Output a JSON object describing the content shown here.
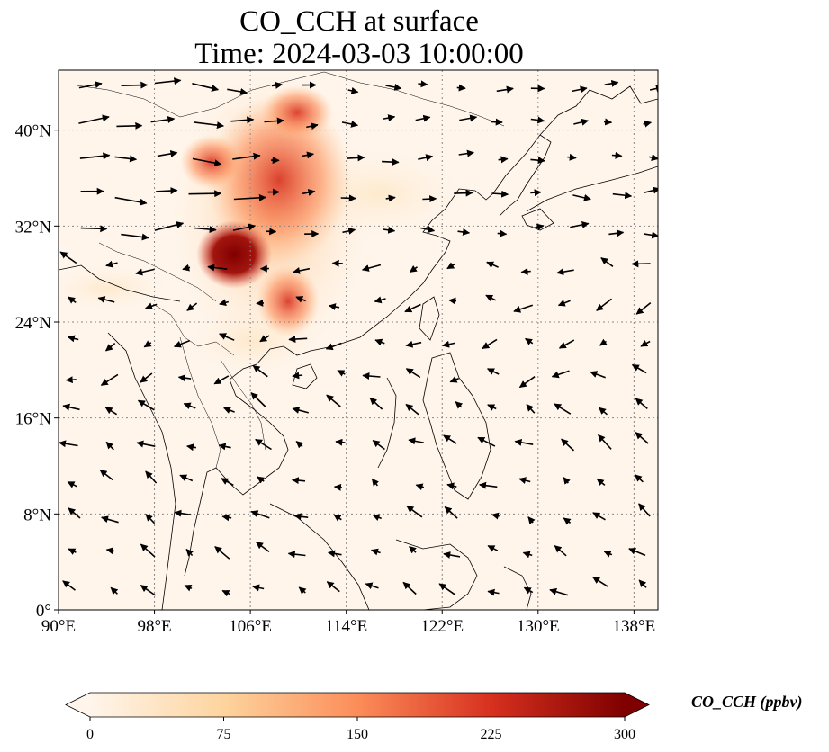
{
  "title": "CO_CCH at surface",
  "subtitle": "Time: 2024-03-03 10:00:00",
  "map": {
    "lon_range": [
      90,
      140
    ],
    "lat_range": [
      0,
      45
    ],
    "lon_ticks": [
      "90°E",
      "98°E",
      "106°E",
      "114°E",
      "122°E",
      "130°E",
      "138°E"
    ],
    "lat_ticks": [
      "0°",
      "8°N",
      "16°N",
      "24°N",
      "32°N",
      "40°N"
    ],
    "background_color": "#fff5eb",
    "gridlines": "dotted",
    "overlay": "wind vectors"
  },
  "colorbar": {
    "label": "CO_CCH (ppbv)",
    "min": 0,
    "max": 300,
    "ticks": [
      "0",
      "75",
      "150",
      "225",
      "300"
    ],
    "colormap": "OrRd",
    "colors": [
      "#fff5eb",
      "#fdd49e",
      "#fc8d59",
      "#d7301f",
      "#7f0000"
    ],
    "extend": "both"
  },
  "chart_data": {
    "type": "heatmap",
    "title": "CO_CCH at surface",
    "subtitle": "Time: 2024-03-03 10:00:00",
    "x_range": [
      90,
      140
    ],
    "y_range": [
      0,
      45
    ],
    "x_ticks": [
      90,
      98,
      106,
      114,
      122,
      130,
      138
    ],
    "y_ticks": [
      0,
      8,
      16,
      24,
      32,
      40
    ],
    "value_range": [
      0,
      300
    ],
    "plumes": [
      {
        "lon": 104.5,
        "lat": 29.5,
        "value": 300
      },
      {
        "lon": 106.5,
        "lat": 33.5,
        "value": 190
      },
      {
        "lon": 109.5,
        "lat": 35.5,
        "value": 170
      },
      {
        "lon": 107.5,
        "lat": 38.5,
        "value": 160
      },
      {
        "lon": 111.0,
        "lat": 41.5,
        "value": 230
      },
      {
        "lon": 102.5,
        "lat": 36.5,
        "value": 190
      },
      {
        "lon": 109.5,
        "lat": 25.5,
        "value": 190
      },
      {
        "lon": 108.0,
        "lat": 28.0,
        "value": 150
      },
      {
        "lon": 94.5,
        "lat": 26.8,
        "value": 60
      }
    ]
  }
}
